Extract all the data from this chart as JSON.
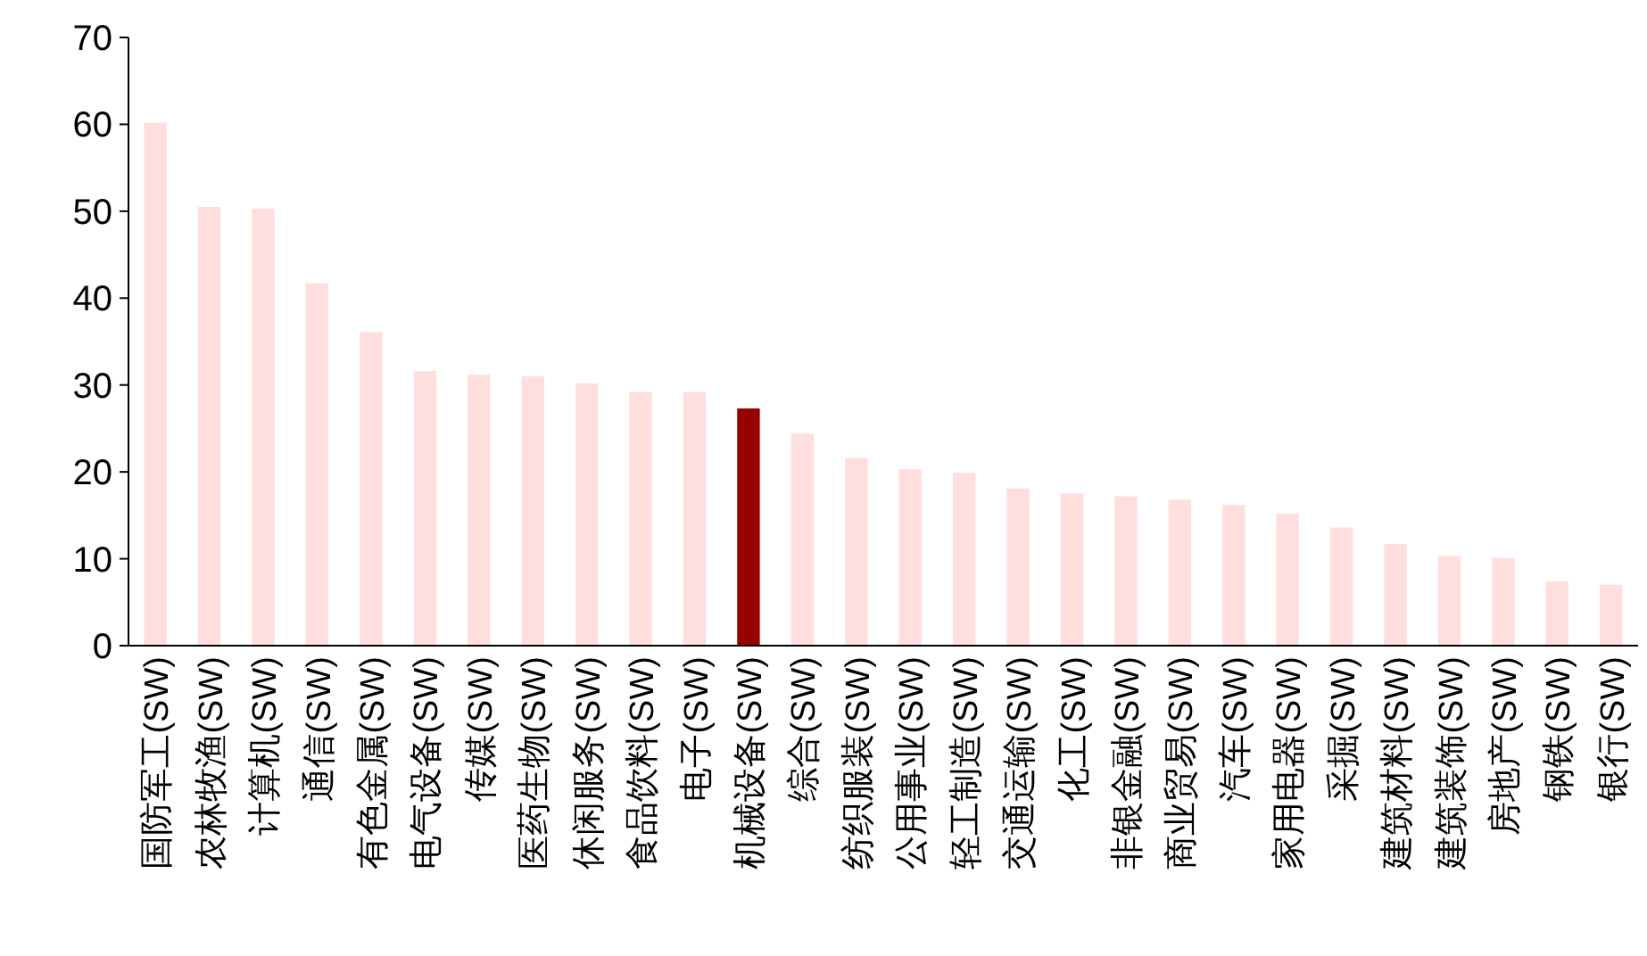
{
  "chart_data": {
    "type": "bar",
    "categories": [
      "国防军工(SW)",
      "农林牧渔(SW)",
      "计算机(SW)",
      "通信(SW)",
      "有色金属(SW)",
      "电气设备(SW)",
      "传媒(SW)",
      "医药生物(SW)",
      "休闲服务(SW)",
      "食品饮料(SW)",
      "电子(SW)",
      "机械设备(SW)",
      "综合(SW)",
      "纺织服装(SW)",
      "公用事业(SW)",
      "轻工制造(SW)",
      "交通运输(SW)",
      "化工(SW)",
      "非银金融(SW)",
      "商业贸易(SW)",
      "汽车(SW)",
      "家用电器(SW)",
      "采掘(SW)",
      "建筑材料(SW)",
      "建筑装饰(SW)",
      "房地产(SW)",
      "钢铁(SW)",
      "银行(SW)"
    ],
    "values": [
      60.2,
      50.5,
      50.3,
      41.7,
      36.1,
      31.6,
      31.2,
      31.0,
      30.2,
      29.2,
      29.2,
      27.3,
      24.4,
      21.6,
      20.3,
      19.9,
      18.1,
      17.5,
      17.2,
      16.8,
      16.2,
      15.2,
      13.6,
      11.7,
      10.3,
      10.1,
      7.4,
      7.0
    ],
    "colors": [
      "#ffdede",
      "#ffdede",
      "#ffdede",
      "#ffdede",
      "#ffdede",
      "#ffdede",
      "#ffdede",
      "#ffdede",
      "#ffdede",
      "#ffdede",
      "#ffdede",
      "#990000",
      "#ffdede",
      "#ffdede",
      "#ffdede",
      "#ffdede",
      "#ffdede",
      "#ffdede",
      "#ffdede",
      "#ffdede",
      "#ffdede",
      "#ffdede",
      "#ffdede",
      "#ffdede",
      "#ffdede",
      "#ffdede",
      "#ffdede",
      "#ffdede"
    ],
    "ylim": [
      0,
      70
    ],
    "yticks": [
      0,
      10,
      20,
      30,
      40,
      50,
      60,
      70
    ],
    "grid": false
  }
}
